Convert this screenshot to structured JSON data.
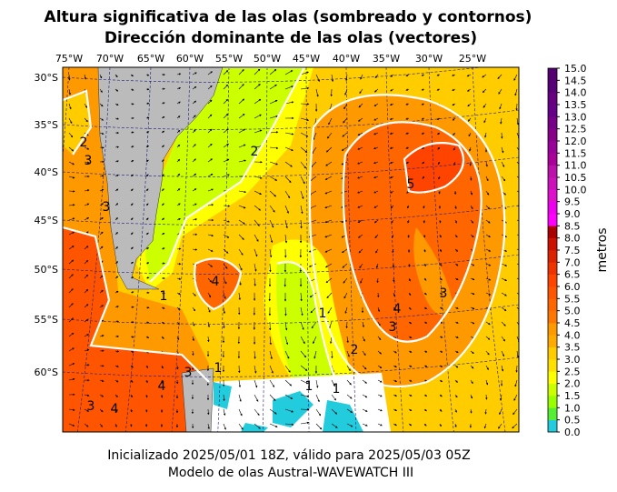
{
  "title": [
    "Altura significativa de las olas (sombreado y contornos)",
    "Dirección dominante de las olas (vectores)"
  ],
  "map": {
    "lon_labels": [
      "75°W",
      "70°W",
      "65°W",
      "60°W",
      "55°W",
      "50°W",
      "45°W",
      "40°W",
      "35°W",
      "30°W",
      "25°W"
    ],
    "lat_labels": [
      "30°S",
      "35°S",
      "40°S",
      "45°S",
      "50°S",
      "55°S",
      "60°S"
    ],
    "contour_labels": [
      "5",
      "4",
      "3",
      "3",
      "2",
      "2",
      "1",
      "4",
      "4",
      "3",
      "1",
      "1",
      "1",
      "3",
      "4",
      "1",
      "2",
      "3",
      "3"
    ]
  },
  "colorbar": {
    "label": "metros",
    "ticks": [
      "0.0",
      "0.5",
      "1.0",
      "1.5",
      "2.0",
      "2.5",
      "3.0",
      "3.5",
      "4.0",
      "4.5",
      "5.0",
      "5.5",
      "6.0",
      "6.5",
      "7.0",
      "7.5",
      "8.0",
      "8.5",
      "9.0",
      "9.5",
      "10.0",
      "10.5",
      "11.0",
      "11.5",
      "12.0",
      "12.5",
      "13.0",
      "13.5",
      "14.0",
      "14.5",
      "15.0"
    ],
    "colors": [
      "#22ccdd",
      "#55ee33",
      "#99ff00",
      "#ccff00",
      "#ffff00",
      "#ffe000",
      "#ffcc00",
      "#ffaa00",
      "#ff9900",
      "#ff7700",
      "#ff6600",
      "#ff5500",
      "#ff4400",
      "#ee3300",
      "#dd2200",
      "#cc1100",
      "#aa0000",
      "#ff00ff",
      "#ee00ee",
      "#dd11cc",
      "#cc11bb",
      "#bb11aa",
      "#aa0099",
      "#990099",
      "#880088",
      "#770088",
      "#660088",
      "#660080",
      "#550077",
      "#550070"
    ]
  },
  "footer": [
    "Inicializado 2025/05/01 18Z, válido para 2025/05/03 05Z",
    "Modelo de olas Austral-WAVEWATCH III"
  ]
}
